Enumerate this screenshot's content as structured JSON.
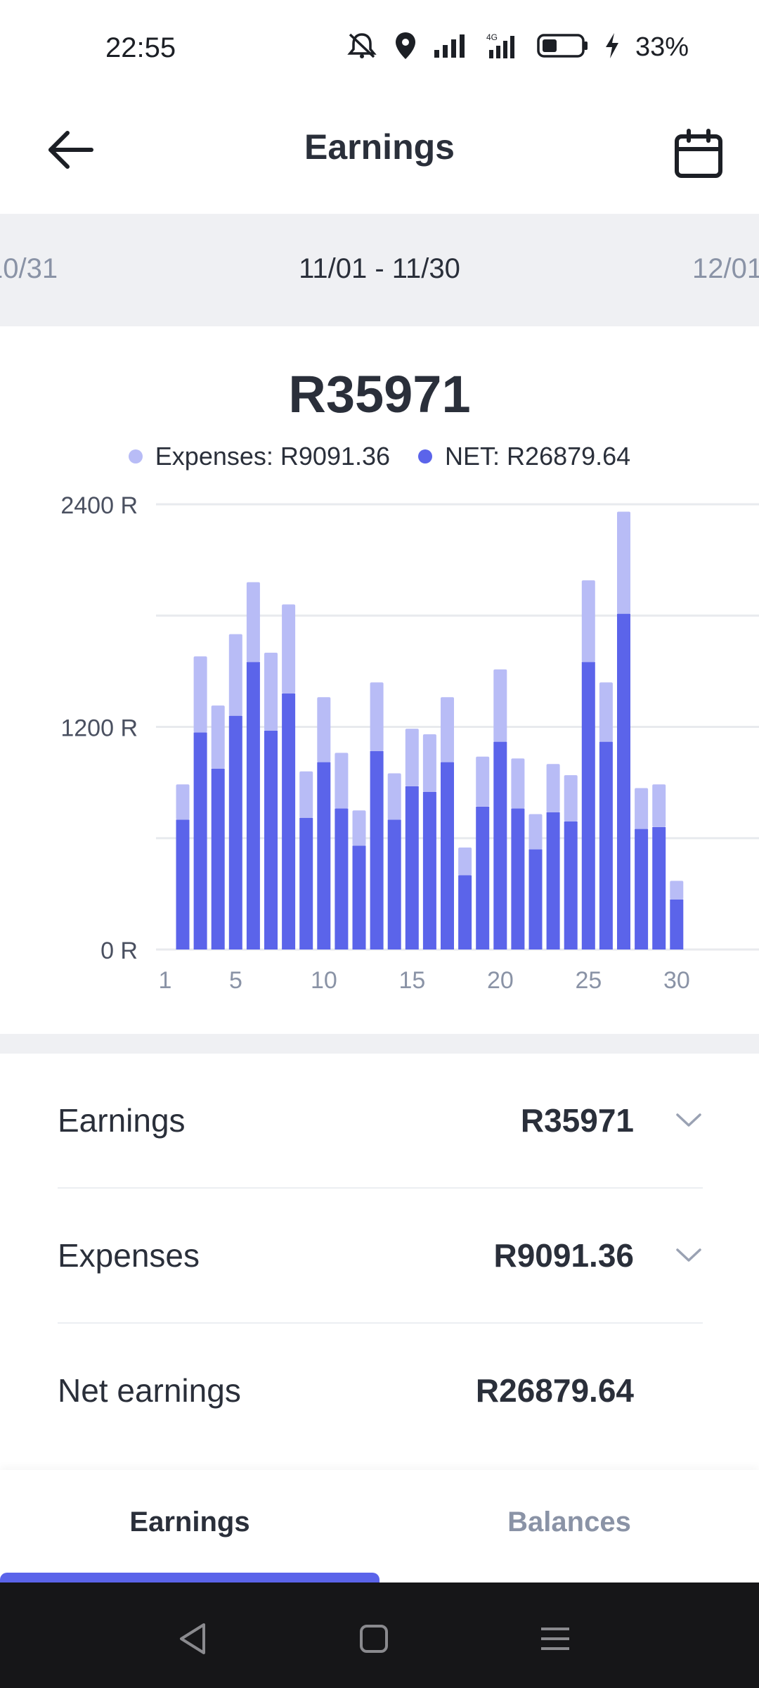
{
  "status_bar": {
    "time": "22:55",
    "battery": "33%",
    "icons": [
      "mute-icon",
      "location-icon",
      "signal-icon",
      "4g-signal-icon",
      "battery-icon",
      "charging-icon"
    ]
  },
  "header": {
    "title": "Earnings",
    "back_icon": "arrow-left-icon",
    "calendar_icon": "calendar-icon"
  },
  "periods": {
    "prev": "10/31",
    "current": "11/01 - 11/30",
    "next": "12/01"
  },
  "summary_total": "R35971",
  "legend": {
    "expenses": "Expenses: R9091.36",
    "net": "NET: R26879.64"
  },
  "colors": {
    "expenses": "#b8bcf6",
    "net": "#5b64ea",
    "accent": "#5b64ea"
  },
  "chart_data": {
    "type": "bar",
    "stacked": true,
    "categories": [
      1,
      2,
      3,
      4,
      5,
      6,
      7,
      8,
      9,
      10,
      11,
      12,
      13,
      14,
      15,
      16,
      17,
      18,
      19,
      20,
      21,
      22,
      23,
      24,
      25,
      26,
      27,
      28,
      29,
      30
    ],
    "x_tick_labels": [
      "1",
      "5",
      "10",
      "15",
      "20",
      "25",
      "30"
    ],
    "y_tick_labels": [
      "0 R",
      "1200 R",
      "2400 R"
    ],
    "ylim": [
      0,
      2400
    ],
    "grid": true,
    "series": [
      {
        "name": "NET",
        "color": "#5b64ea",
        "values": [
          700,
          1170,
          975,
          1260,
          1550,
          1180,
          1380,
          710,
          1010,
          760,
          560,
          1070,
          700,
          880,
          850,
          1010,
          400,
          770,
          1120,
          760,
          540,
          740,
          690,
          1550,
          1120,
          1810,
          650,
          660,
          270,
          0
        ]
      },
      {
        "name": "Expenses",
        "color": "#b8bcf6",
        "values": [
          190,
          410,
          340,
          440,
          430,
          420,
          480,
          250,
          350,
          300,
          190,
          370,
          250,
          310,
          310,
          350,
          150,
          270,
          390,
          270,
          190,
          260,
          250,
          440,
          320,
          550,
          220,
          230,
          100,
          0
        ]
      }
    ]
  },
  "summary": {
    "rows": [
      {
        "label": "Earnings",
        "value": "R35971"
      },
      {
        "label": "Expenses",
        "value": "R9091.36"
      },
      {
        "label": "Net earnings",
        "value": "R26879.64"
      }
    ]
  },
  "tabs": [
    {
      "label": "Earnings",
      "active": true
    },
    {
      "label": "Balances",
      "active": false
    }
  ],
  "android_nav": [
    "back-triangle-icon",
    "home-square-icon",
    "recents-menu-icon"
  ]
}
